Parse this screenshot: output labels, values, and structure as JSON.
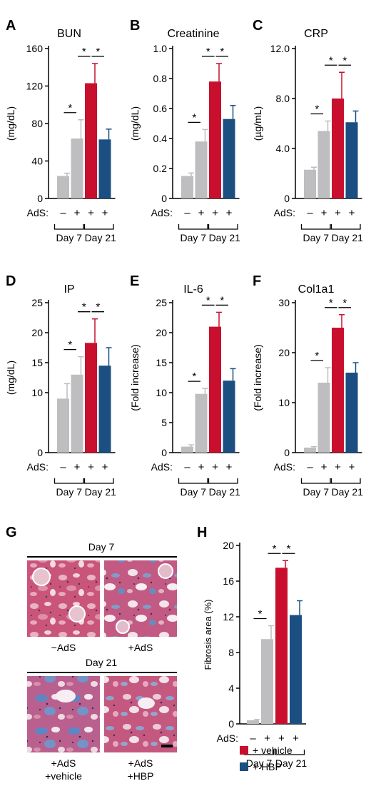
{
  "colors": {
    "control": "#bebec1",
    "vehicle": "#c8102e",
    "hbp": "#1b4f82",
    "axis": "#000000"
  },
  "adlabels": {
    "prefix": "AdS:",
    "minus": "–",
    "plus": "+",
    "group1": "Day 7",
    "group2": "Day 21",
    "star": "*"
  },
  "chart_data": [
    {
      "letter": "A",
      "type": "bar",
      "title": "BUN",
      "ylabel": "(mg/dL)",
      "ylim": [
        0,
        160
      ],
      "ticks": [
        "0",
        "40",
        "80",
        "120",
        "160"
      ],
      "categories": [
        "Day 7 AdS–",
        "Day 7 AdS+",
        "Day 21 AdS+ vehicle",
        "Day 21 AdS+ HBP"
      ],
      "values": [
        24,
        64,
        123,
        63
      ],
      "errors": [
        3,
        20,
        21,
        11
      ]
    },
    {
      "letter": "B",
      "type": "bar",
      "title": "Creatinine",
      "ylabel": "(mg/dL)",
      "ylim": [
        0,
        1.0
      ],
      "ticks": [
        "0",
        "0.2",
        "0.4",
        "0.6",
        "0.8",
        "1.0"
      ],
      "categories": [
        "Day 7 AdS–",
        "Day 7 AdS+",
        "Day 21 AdS+ vehicle",
        "Day 21 AdS+ HBP"
      ],
      "values": [
        0.15,
        0.38,
        0.78,
        0.53
      ],
      "errors": [
        0.02,
        0.08,
        0.12,
        0.09
      ]
    },
    {
      "letter": "C",
      "type": "bar",
      "title": "CRP",
      "ylabel": "(µg/mL)",
      "ylim": [
        0,
        12.0
      ],
      "ticks": [
        "0",
        "4.0",
        "8.0",
        "12.0"
      ],
      "categories": [
        "Day 7 AdS–",
        "Day 7 AdS+",
        "Day 21 AdS+ vehicle",
        "Day 21 AdS+ HBP"
      ],
      "values": [
        2.3,
        5.4,
        8.0,
        6.1
      ],
      "errors": [
        0.2,
        0.8,
        2.1,
        0.9
      ]
    },
    {
      "letter": "D",
      "type": "bar",
      "title": "IP",
      "ylabel": "(mg/dL)",
      "ylim": [
        0,
        25
      ],
      "ticks": [
        "0",
        "10",
        "15",
        "20",
        "25"
      ],
      "categories": [
        "Day 7 AdS–",
        "Day 7 AdS+",
        "Day 21 AdS+ vehicle",
        "Day 21 AdS+ HBP"
      ],
      "values": [
        9,
        13,
        18.3,
        14.5
      ],
      "errors": [
        2.5,
        3,
        4,
        3
      ]
    },
    {
      "letter": "E",
      "type": "bar",
      "title": "IL-6",
      "ylabel": "(Fold increase)",
      "ylim": [
        0,
        25
      ],
      "ticks": [
        "0",
        "5",
        "10",
        "15",
        "20",
        "25"
      ],
      "categories": [
        "Day 7 AdS–",
        "Day 7 AdS+",
        "Day 21 AdS+ vehicle",
        "Day 21 AdS+ HBP"
      ],
      "values": [
        1,
        9.8,
        21,
        12
      ],
      "errors": [
        0.3,
        0.9,
        2.4,
        2
      ]
    },
    {
      "letter": "F",
      "type": "bar",
      "title": "Col1a1",
      "ylabel": "(Fold increase)",
      "ylim": [
        0,
        30
      ],
      "ticks": [
        "0",
        "10",
        "20",
        "30"
      ],
      "categories": [
        "Day 7 AdS–",
        "Day 7 AdS+",
        "Day 21 AdS+ vehicle",
        "Day 21 AdS+ HBP"
      ],
      "values": [
        1,
        14,
        25,
        16
      ],
      "errors": [
        0.2,
        3,
        2.6,
        2
      ]
    },
    {
      "letter": "H",
      "type": "bar",
      "title": "",
      "ylabel": "Fibrosis area (%)",
      "ylim": [
        0,
        20
      ],
      "ticks": [
        "0",
        "4",
        "8",
        "12",
        "16",
        "20"
      ],
      "categories": [
        "Day 7 AdS–",
        "Day 7 AdS+",
        "Day 21 AdS+ vehicle",
        "Day 21 AdS+ HBP"
      ],
      "values": [
        0.4,
        9.5,
        17.5,
        12.2
      ],
      "errors": [
        0.1,
        1.5,
        0.8,
        1.6
      ]
    }
  ],
  "legend": [
    {
      "label": "+ vehicle",
      "color": "#c8102e"
    },
    {
      "label": "+ HBP",
      "color": "#1b4f82"
    }
  ],
  "histology": {
    "letter": "G",
    "day7_label": "Day 7",
    "day21_label": "Day 21",
    "captions": {
      "c1": "−AdS",
      "c2": "+AdS",
      "c3a": "+AdS",
      "c3b": "+vehicle",
      "c4a": "+AdS",
      "c4b": "+HBP"
    }
  }
}
